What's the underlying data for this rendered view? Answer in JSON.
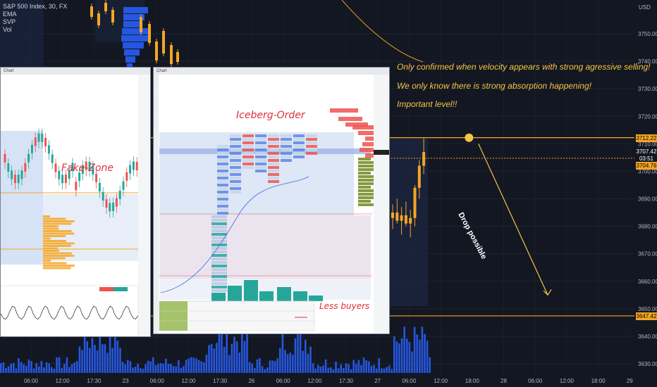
{
  "header": {
    "symbol": "S&P 500 Index, 30, FX",
    "indicators": [
      "EMA",
      "SVP",
      "Vol"
    ],
    "currency": "USD"
  },
  "annotations": {
    "note1": "Only confirmed when velocity appears with strong agressive selling!",
    "note2": "We only know there is strong absorption happening!",
    "note3": "Important level!!",
    "drop_label": "Drop possible",
    "fake_zone": "Fake-Zone",
    "iceberg_order": "Iceberg-Order",
    "less_buyers": "Less buyers"
  },
  "price_tags": {
    "level_high": "3712.22",
    "last_price": "3707.42",
    "countdown": "03:51",
    "ema": "3704.76",
    "level_low": "3647.42"
  },
  "colors": {
    "background": "#131722",
    "note_text": "#f5c542",
    "level_line": "#f5a623",
    "volume_bars": "#2962ff",
    "volume_profile": "#2962ff",
    "handwriting": "#e0303a",
    "price_tag_text": "#000000"
  },
  "windows": {
    "left_title": "Chart",
    "right_title": "Chart"
  },
  "chart_data": {
    "type": "candlestick",
    "y_axis": {
      "ticks": [
        3750,
        3740,
        3730,
        3720,
        3710,
        3700,
        3690,
        3680,
        3670,
        3660,
        3650,
        3640,
        3630
      ],
      "ylim": [
        3626,
        3767
      ]
    },
    "x_axis": {
      "ticks": [
        "06:00",
        "12:00",
        "17:30",
        "23",
        "06:00",
        "12:00",
        "17:30",
        "26",
        "06:00",
        "12:00",
        "17:30",
        "27",
        "06:00",
        "12:00",
        "18:00",
        "28",
        "06:00",
        "12:00",
        "18:00",
        "29"
      ]
    },
    "levels": [
      {
        "price": 3712.22,
        "label": "3712.22"
      },
      {
        "price": 3647.42,
        "label": "3647.42"
      }
    ],
    "dotted_level": 3704.76,
    "marker": {
      "time_index": 13.9,
      "price": 3712.2
    },
    "arrow": {
      "from": {
        "time_index": 14.2,
        "price": 3710
      },
      "to": {
        "time_index": 16.4,
        "price": 3655
      }
    },
    "visible_candles_right": {
      "approx_ohlc_sequence": [
        [
          3683,
          3688,
          3679,
          3685
        ],
        [
          3685,
          3690,
          3681,
          3682
        ],
        [
          3682,
          3687,
          3677,
          3684
        ],
        [
          3684,
          3689,
          3680,
          3681
        ],
        [
          3681,
          3686,
          3676,
          3683
        ],
        [
          3683,
          3695,
          3680,
          3694
        ],
        [
          3694,
          3704,
          3690,
          3702
        ],
        [
          3702,
          3712,
          3699,
          3707
        ]
      ]
    }
  }
}
